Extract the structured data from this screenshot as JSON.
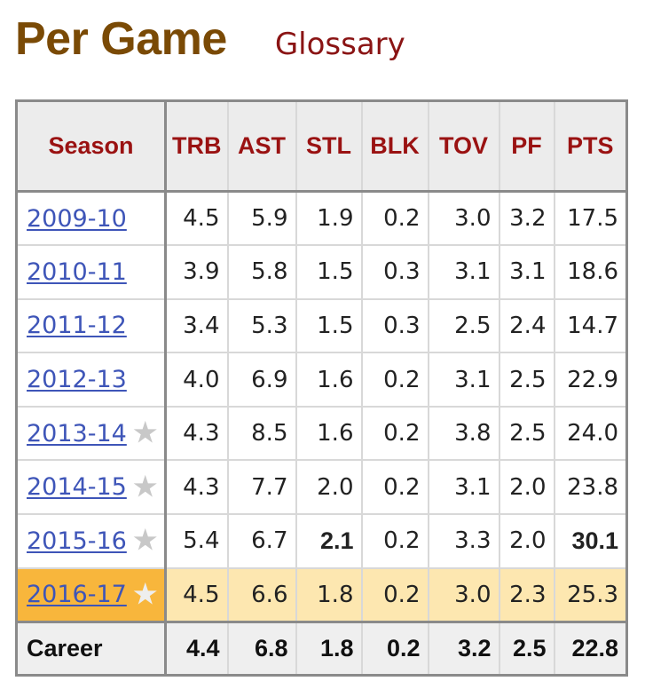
{
  "header": {
    "title": "Per Game",
    "glossary_label": "Glossary"
  },
  "table": {
    "columns": [
      "Season",
      "TRB",
      "AST",
      "STL",
      "BLK",
      "TOV",
      "PF",
      "PTS"
    ],
    "rows": [
      {
        "season": "2009-10",
        "star": false,
        "highlight": false,
        "values": [
          "4.5",
          "5.9",
          "1.9",
          "0.2",
          "3.0",
          "3.2",
          "17.5"
        ],
        "bold": []
      },
      {
        "season": "2010-11",
        "star": false,
        "highlight": false,
        "values": [
          "3.9",
          "5.8",
          "1.5",
          "0.3",
          "3.1",
          "3.1",
          "18.6"
        ],
        "bold": []
      },
      {
        "season": "2011-12",
        "star": false,
        "highlight": false,
        "values": [
          "3.4",
          "5.3",
          "1.5",
          "0.3",
          "2.5",
          "2.4",
          "14.7"
        ],
        "bold": []
      },
      {
        "season": "2012-13",
        "star": false,
        "highlight": false,
        "values": [
          "4.0",
          "6.9",
          "1.6",
          "0.2",
          "3.1",
          "2.5",
          "22.9"
        ],
        "bold": []
      },
      {
        "season": "2013-14",
        "star": true,
        "highlight": false,
        "values": [
          "4.3",
          "8.5",
          "1.6",
          "0.2",
          "3.8",
          "2.5",
          "24.0"
        ],
        "bold": []
      },
      {
        "season": "2014-15",
        "star": true,
        "highlight": false,
        "values": [
          "4.3",
          "7.7",
          "2.0",
          "0.2",
          "3.1",
          "2.0",
          "23.8"
        ],
        "bold": []
      },
      {
        "season": "2015-16",
        "star": true,
        "highlight": false,
        "values": [
          "5.4",
          "6.7",
          "2.1",
          "0.2",
          "3.3",
          "2.0",
          "30.1"
        ],
        "bold": [
          2,
          6
        ]
      },
      {
        "season": "2016-17",
        "star": true,
        "highlight": true,
        "values": [
          "4.5",
          "6.6",
          "1.8",
          "0.2",
          "3.0",
          "2.3",
          "25.3"
        ],
        "bold": []
      }
    ],
    "career": {
      "label": "Career",
      "values": [
        "4.4",
        "6.8",
        "1.8",
        "0.2",
        "3.2",
        "2.5",
        "22.8"
      ]
    },
    "star_icon": "star-icon",
    "colors": {
      "title": "#7a4a05",
      "header_text": "#9a1212",
      "link": "#3e55b8",
      "highlight_row": "#fde7b0",
      "highlight_season": "#f8b63c"
    }
  }
}
